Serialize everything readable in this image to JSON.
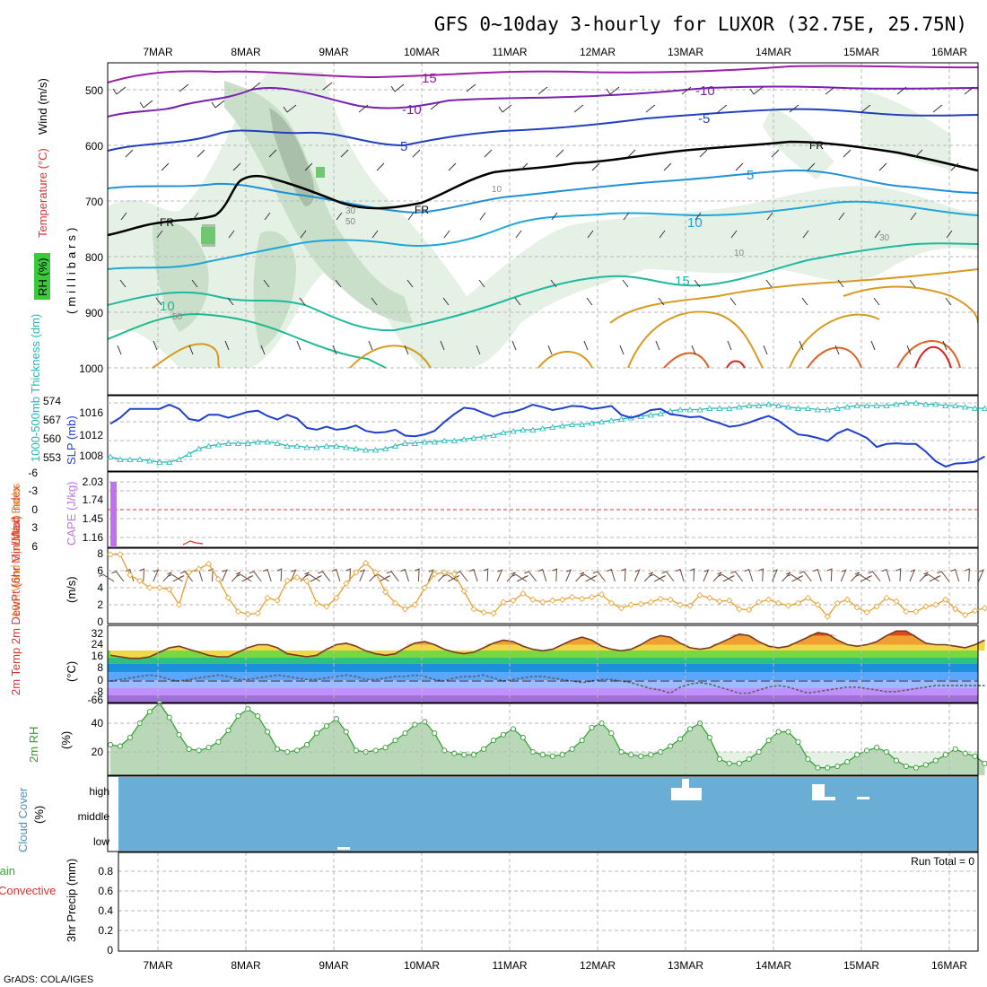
{
  "title": "GFS 0~10day 3-hourly for LUXOR (32.75E, 25.75N)",
  "credit": "GrADS: COLA/IGES",
  "dates": [
    "7MAR",
    "8MAR",
    "9MAR",
    "10MAR",
    "11MAR",
    "12MAR",
    "13MAR",
    "14MAR",
    "15MAR",
    "16MAR"
  ],
  "colors": {
    "slp": "#1f3fcf",
    "thickness": "#20b8b8",
    "cape": "#c070f0",
    "lifted_index": "#e03030",
    "wind10": "#e8a030",
    "tmax_line": "#7a3a20",
    "dewpoint": "#606060",
    "rh": "#2e9e2e",
    "cloud": "#6aaed6",
    "precip_label": "#2eaa2e",
    "convective": "#e03030"
  },
  "panels": {
    "upper": {
      "ylabel_rh": "RH (%)",
      "ylabel_temp": "Temperature (°C)",
      "ylabel_wind": "Wind (m/s)",
      "ylabel_p": "(millibars)",
      "pressure_ticks": [
        "500",
        "600",
        "700",
        "800",
        "900",
        "1000"
      ],
      "contour_labels": [
        "15",
        "-10",
        "-10",
        "-5",
        "5",
        "5",
        "FR",
        "FR",
        "FR",
        "10",
        "15",
        "10",
        "30",
        "50",
        "10",
        "10",
        "30",
        "50"
      ]
    },
    "slp": {
      "ylabel_left": "1000-500mb\nThickness (dm)",
      "ylabel_right": "SLP (mb)",
      "thickness_ticks": [
        "574",
        "567",
        "560",
        "553"
      ],
      "slp_ticks": [
        "1016",
        "1012",
        "1008"
      ]
    },
    "cape": {
      "ylabel_li": "Lifted Index",
      "ylabel_cape": "CAPE (J/kg)",
      "li_ticks": [
        "-6",
        "-3",
        "0",
        "3",
        "6"
      ],
      "cape_ticks": [
        "2.03",
        "1.74",
        "1.45",
        "1.16"
      ]
    },
    "wind10": {
      "ylabel": "10m Wind Speed & Barbs",
      "unit": "(m/s)",
      "ticks": [
        "0",
        "2",
        "4",
        "6",
        "8"
      ]
    },
    "temp2m": {
      "ylabel": "2m Temp\n2m DewPt\n(6hr Min/Max)",
      "unit": "(°C)",
      "ticks": [
        "32",
        "24",
        "16",
        "8",
        "0",
        "-8",
        "-66"
      ]
    },
    "rh2m": {
      "ylabel": "2m RH",
      "unit": "(%)",
      "ticks": [
        "40",
        "20"
      ]
    },
    "cloud": {
      "ylabel": "Cloud Cover",
      "unit": "(%)",
      "levels": [
        "high",
        "middle",
        "low"
      ]
    },
    "precip": {
      "ylabel_total": "Total / Rain",
      "ylabel_conv": "Convective",
      "ylabel": "3hr Precip (mm)",
      "ticks": [
        "0.8",
        "0.6",
        "0.4",
        "0.2",
        "0"
      ],
      "run_total": "Run Total = 0"
    }
  },
  "chart_data": [
    {
      "type": "line",
      "name": "sea_level_pressure",
      "x_start": "06MAR 21Z",
      "x_step_hours": 3,
      "values": [
        1014,
        1015,
        1016.5,
        1016.5,
        1016.5,
        1016.5,
        1017.2,
        1016.5,
        1014.8,
        1014.5,
        1015.5,
        1015.5,
        1015,
        1015.5,
        1016,
        1016.2,
        1015.3,
        1014.7,
        1015.5,
        1014.9,
        1013.3,
        1013.0,
        1013.5,
        1013.0,
        1013.2,
        1013.7,
        1012.8,
        1012.5,
        1012.6,
        1013.0,
        1012.0,
        1011.9,
        1012.2,
        1012.8,
        1014.3,
        1015.6,
        1016.7,
        1016.5,
        1015.8,
        1015.2,
        1015.8,
        1016.0,
        1016.5,
        1017.2,
        1016.8,
        1016.3,
        1016.6,
        1017.0,
        1016.9,
        1016.5,
        1016.7,
        1017.0,
        1015.5,
        1015.0,
        1015.5,
        1016.3,
        1016.5,
        1015.6,
        1015.4,
        1015.1,
        1015.2,
        1014.6,
        1014.1,
        1013.5,
        1013.7,
        1014.2,
        1014.8,
        1015.3,
        1014.5,
        1013.3,
        1012.2,
        1012.0,
        1011.6,
        1011.1,
        1012.4,
        1013.1,
        1012.4,
        1011.6,
        1010.1,
        1010.6,
        1010.7,
        1010.6,
        1010.6,
        1009.3,
        1007.7,
        1006.8,
        1007.3,
        1007.4,
        1007.6,
        1008.5
      ]
    },
    {
      "type": "line",
      "name": "1000-500mb_thickness",
      "x_start": "06MAR 21Z",
      "x_step_hours": 3,
      "values": [
        554,
        553,
        553,
        553,
        552.5,
        552,
        552,
        553,
        555,
        557,
        558,
        558.5,
        559,
        559,
        559,
        559.5,
        559.5,
        559,
        558,
        558,
        557.5,
        557.5,
        558,
        558,
        557.5,
        557,
        556.5,
        556.5,
        557,
        558,
        559,
        559,
        559.5,
        559.5,
        560,
        560,
        560.5,
        561,
        561.5,
        562,
        563,
        563.5,
        564,
        564,
        564.5,
        565,
        565.5,
        566,
        566,
        566.5,
        567,
        567.5,
        568,
        568.5,
        569,
        569.5,
        570,
        571,
        571.5,
        571.5,
        571.5,
        572,
        572,
        572,
        572.5,
        573,
        573,
        573.5,
        573,
        572.5,
        572,
        572,
        571.5,
        571.5,
        572,
        572.5,
        573,
        573,
        573,
        573,
        573.5,
        574,
        574,
        573.5,
        573.5,
        573,
        573,
        572.5,
        572,
        572
      ]
    },
    {
      "type": "bar",
      "name": "cape",
      "x": [
        "06MAR 21Z"
      ],
      "values": [
        2.03
      ]
    },
    {
      "type": "line",
      "name": "wind_speed_10m",
      "x_start": "06MAR 21Z",
      "x_step_hours": 3,
      "values": [
        7.9,
        7.9,
        5.5,
        4.8,
        4.0,
        4.0,
        3.8,
        2.0,
        5.8,
        6.2,
        6.8,
        5.0,
        2.8,
        1.2,
        0.9,
        1.0,
        2.8,
        2.5,
        4.8,
        5.2,
        4.8,
        2.2,
        1.8,
        2.8,
        4.5,
        5.8,
        6.9,
        5.8,
        3.5,
        2.2,
        1.5,
        2.0,
        4.0,
        5.6,
        5.8,
        5.6,
        3.6,
        1.5,
        1.1,
        1.0,
        2.3,
        2.5,
        3.3,
        2.6,
        2.3,
        2.5,
        2.6,
        2.9,
        2.7,
        2.9,
        3.2,
        2.2,
        1.6,
        2.0,
        2.1,
        2.3,
        2.7,
        2.6,
        2.0,
        1.9,
        3.1,
        2.8,
        2.4,
        2.5,
        1.5,
        1.4,
        2.3,
        2.6,
        2.2,
        1.9,
        2.2,
        2.8,
        2.0,
        0.6,
        2.2,
        2.6,
        1.7,
        1.1,
        1.8,
        2.8,
        2.4,
        1.2,
        1.2,
        1.8,
        2.0,
        2.6,
        1.5,
        0.8,
        1.3,
        1.6
      ]
    },
    {
      "type": "area",
      "name": "temperature_2m",
      "x_start": "06MAR 21Z",
      "x_step_hours": 3,
      "values": [
        17,
        16,
        15,
        15,
        16,
        19,
        22,
        23,
        21,
        19,
        17,
        16,
        16,
        19,
        22,
        24,
        24,
        22,
        18,
        17,
        16,
        17,
        21,
        24,
        25,
        23,
        20,
        18,
        17,
        18,
        22,
        25,
        26,
        24,
        21,
        19,
        18,
        19,
        22,
        25,
        27,
        26,
        23,
        21,
        20,
        21,
        24,
        27,
        29,
        27,
        23,
        21,
        20,
        21,
        24,
        28,
        30,
        29,
        25,
        22,
        21,
        22,
        25,
        28,
        31,
        30,
        26,
        23,
        22,
        23,
        26,
        29,
        32,
        31,
        27,
        24,
        23,
        24,
        26,
        30,
        33,
        33,
        29,
        25,
        24,
        24,
        23,
        22,
        24,
        27
      ]
    },
    {
      "type": "line",
      "name": "dewpoint_2m",
      "x_start": "06MAR 21Z",
      "x_step_hours": 3,
      "values": [
        0,
        1,
        2,
        3,
        4,
        3,
        1,
        0,
        1,
        2,
        3,
        4,
        3,
        1,
        1,
        2,
        3,
        4,
        3,
        2,
        1,
        1,
        2,
        3,
        4,
        3,
        1,
        1,
        2,
        3,
        3,
        4,
        3,
        1,
        0,
        2,
        3,
        3,
        4,
        2,
        0,
        1,
        2,
        3,
        3,
        2,
        1,
        0,
        -1,
        0,
        1,
        1,
        0,
        -1,
        -3,
        -5,
        -6,
        -8,
        -4,
        -2,
        -1,
        -2,
        -4,
        -6,
        -8,
        -8,
        -6,
        -4,
        -3,
        -4,
        -6,
        -8,
        -7,
        -6,
        -5,
        -4,
        -4,
        -5,
        -6,
        -7,
        -7,
        -6,
        -5,
        -4,
        -3,
        -3,
        -3,
        -3,
        -3,
        -3
      ]
    },
    {
      "type": "area",
      "name": "relative_humidity_2m",
      "x_start": "06MAR 21Z",
      "x_step_hours": 3,
      "values": [
        25,
        24,
        30,
        40,
        48,
        54,
        44,
        32,
        22,
        21,
        23,
        27,
        35,
        45,
        50,
        45,
        34,
        22,
        20,
        21,
        25,
        33,
        38,
        43,
        34,
        21,
        20,
        21,
        23,
        28,
        33,
        39,
        41,
        33,
        21,
        19,
        18,
        18,
        22,
        28,
        32,
        36,
        30,
        20,
        18,
        17,
        18,
        22,
        28,
        37,
        40,
        33,
        20,
        18,
        17,
        18,
        20,
        24,
        29,
        36,
        40,
        30,
        15,
        12,
        12,
        15,
        20,
        28,
        34,
        34,
        27,
        15,
        9,
        9,
        10,
        13,
        18,
        21,
        23,
        20,
        14,
        10,
        9,
        11,
        14,
        18,
        22,
        19,
        17,
        12
      ]
    },
    {
      "type": "bar",
      "name": "cloud_cover_high",
      "x": [
        "12MAR 21Z",
        "13MAR 00Z",
        "13MAR 03Z",
        "14MAR 12Z",
        "14MAR 15Z",
        "15MAR 00Z"
      ],
      "values": [
        20,
        35,
        15,
        25,
        5,
        3
      ]
    },
    {
      "type": "bar",
      "name": "precipitation_3hr",
      "run_total": 0,
      "values": []
    }
  ]
}
